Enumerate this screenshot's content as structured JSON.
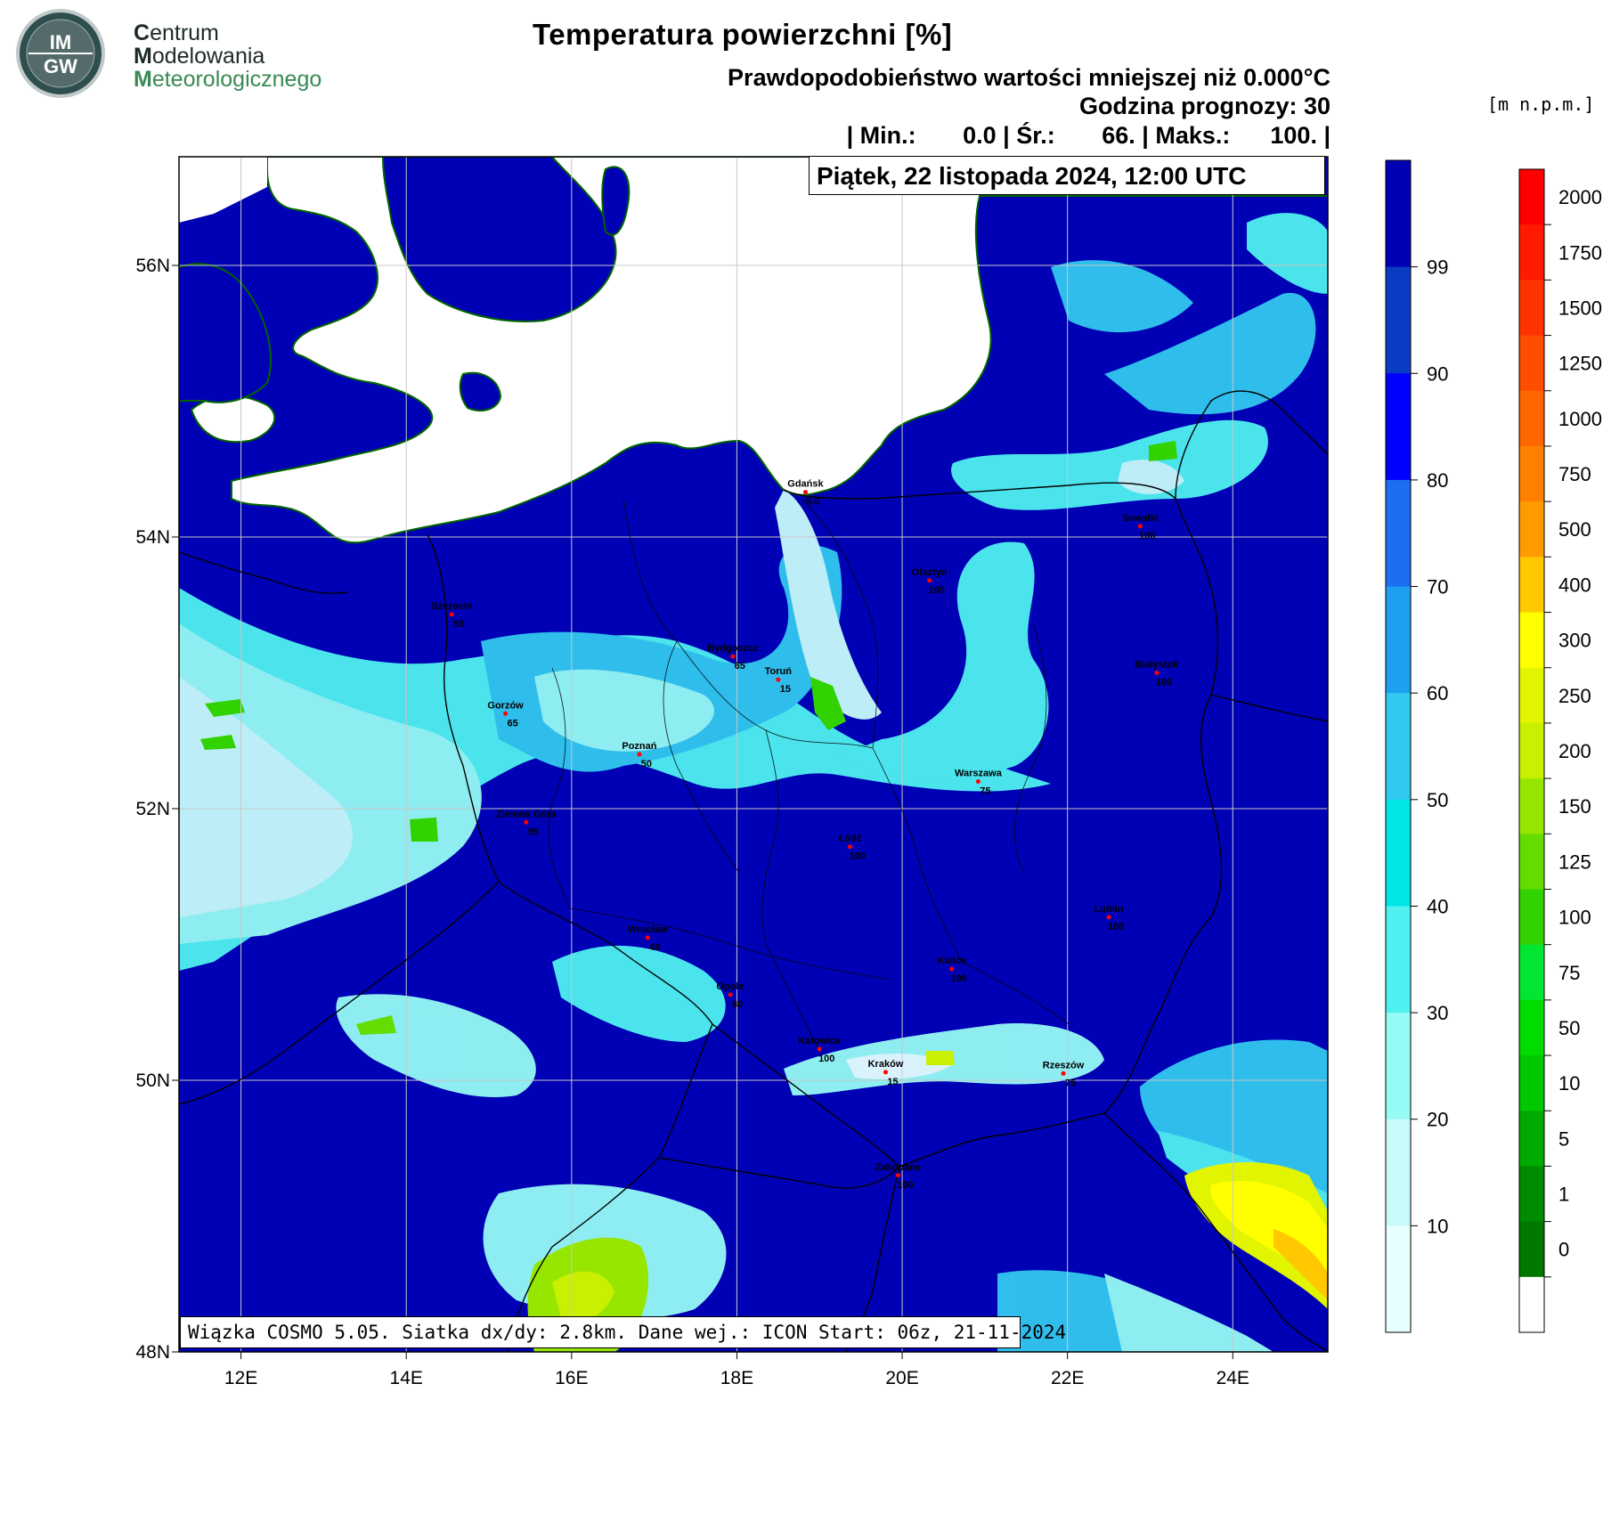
{
  "logo": {
    "badge_top": "IM",
    "badge_bottom": "GW",
    "line1_initial": "C",
    "line1_rest": "entrum",
    "line2_initial": "M",
    "line2_rest": "odelowania",
    "line3_initial": "M",
    "line3_rest": "eteorologicznego"
  },
  "header": {
    "title": "Temperatura powierzchni [%]",
    "subtitle_line1": "Prawdopodobieństwo wartości mniejszej niż 0.000°C",
    "subtitle_line2": "Godzina prognozy: 30",
    "subtitle_line3": "| Min.:       0.0 | Śr.:       66. | Maks.:      100. |",
    "date_label": "Piątek, 22 listopada 2024, 12:00 UTC",
    "elevation_unit": "[m  n.p.m.]"
  },
  "footer": {
    "model_info": "Wiązka COSMO 5.05. Siatka dx/dy: 2.8km. Dane wej.: ICON Start: 06z, 21-11-2024"
  },
  "map": {
    "lat_labels": [
      "56N",
      "54N",
      "52N",
      "50N",
      "48N"
    ],
    "lat_values": [
      56,
      54,
      52,
      50,
      48
    ],
    "lon_labels": [
      "12E",
      "14E",
      "16E",
      "18E",
      "20E",
      "22E",
      "24E"
    ],
    "lon_values": [
      12,
      14,
      16,
      18,
      20,
      22,
      24
    ],
    "lon_range": [
      11.25,
      25.15
    ],
    "lat_range": [
      48,
      56.8
    ],
    "cities": [
      {
        "name": "Gdańsk",
        "value": "5.0",
        "lon": 18.83,
        "lat": 54.33
      },
      {
        "name": "Szczecin",
        "value": "55",
        "lon": 14.55,
        "lat": 53.43
      },
      {
        "name": "Olsztyn",
        "value": "100",
        "lon": 20.33,
        "lat": 53.68
      },
      {
        "name": "Suwałki",
        "value": "100",
        "lon": 22.88,
        "lat": 54.08
      },
      {
        "name": "Bydgoszcz",
        "value": "65",
        "lon": 17.95,
        "lat": 53.12
      },
      {
        "name": "Toruń",
        "value": "15",
        "lon": 18.5,
        "lat": 52.95
      },
      {
        "name": "Białystok",
        "value": "100",
        "lon": 23.08,
        "lat": 53.0
      },
      {
        "name": "Gorzów",
        "value": "65",
        "lon": 15.2,
        "lat": 52.7
      },
      {
        "name": "Poznań",
        "value": "50",
        "lon": 16.82,
        "lat": 52.4
      },
      {
        "name": "Warszawa",
        "value": "75",
        "lon": 20.92,
        "lat": 52.2
      },
      {
        "name": "Zielona Góra",
        "value": "95",
        "lon": 15.45,
        "lat": 51.9
      },
      {
        "name": "Łódź",
        "value": "100",
        "lon": 19.37,
        "lat": 51.72
      },
      {
        "name": "Lublin",
        "value": "100",
        "lon": 22.5,
        "lat": 51.2
      },
      {
        "name": "Wrocław",
        "value": "40",
        "lon": 16.92,
        "lat": 51.05
      },
      {
        "name": "Kielce",
        "value": "100",
        "lon": 20.6,
        "lat": 50.82
      },
      {
        "name": "Opole",
        "value": "80",
        "lon": 17.92,
        "lat": 50.63
      },
      {
        "name": "Katowice",
        "value": "100",
        "lon": 19.0,
        "lat": 50.23
      },
      {
        "name": "Kraków",
        "value": "15",
        "lon": 19.8,
        "lat": 50.06
      },
      {
        "name": "Rzeszów",
        "value": "75",
        "lon": 21.95,
        "lat": 50.05
      },
      {
        "name": "Zakopane",
        "value": "100",
        "lon": 19.95,
        "lat": 49.3
      }
    ]
  },
  "legend_probability": {
    "labels": [
      "99",
      "90",
      "80",
      "70",
      "60",
      "50",
      "40",
      "30",
      "20",
      "10"
    ],
    "colors": [
      "#0000b4",
      "#0a3cc3",
      "#0000ff",
      "#1e6ef0",
      "#1ea0f0",
      "#32c8f0",
      "#00e6e6",
      "#50f0f0",
      "#96faf5",
      "#c8fafa",
      "#e6ffff"
    ]
  },
  "legend_elevation": {
    "labels": [
      "2000",
      "1750",
      "1500",
      "1250",
      "1000",
      "750",
      "500",
      "400",
      "300",
      "250",
      "200",
      "150",
      "125",
      "100",
      "75",
      "50",
      "10",
      "5",
      "1",
      "0"
    ],
    "colors": [
      "#ff0000",
      "#ff1a00",
      "#ff3300",
      "#ff4d00",
      "#ff6600",
      "#ff8000",
      "#ff9a00",
      "#ffc800",
      "#ffff00",
      "#e1f500",
      "#c8f000",
      "#96e600",
      "#64dc00",
      "#32d200",
      "#00e632",
      "#00dc00",
      "#00c800",
      "#00aa00",
      "#008c00",
      "#007800",
      "#ffffff"
    ]
  },
  "colors": {
    "deep_blue": "#0000b4",
    "sea_white": "#ffffff",
    "light_cyan": "#c8fafa",
    "green_low": "#32d200",
    "yellow_mountain": "#f0f000"
  }
}
